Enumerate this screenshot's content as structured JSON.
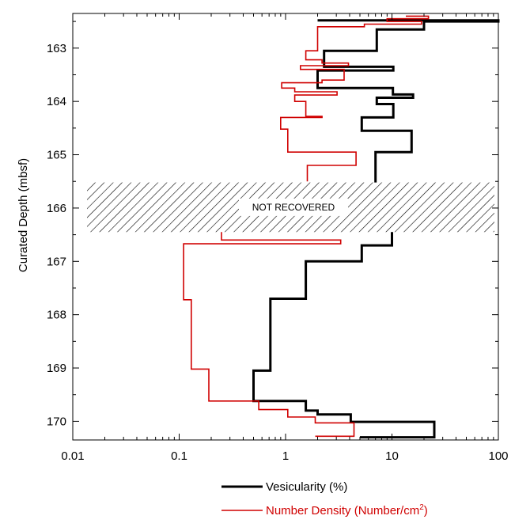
{
  "chart_data": {
    "type": "line",
    "title": "",
    "xlabel": "",
    "ylabel": "Curated Depth (mbsf)",
    "xscale": "log",
    "xlim": [
      0.01,
      100
    ],
    "ylim": [
      170.35,
      162.35
    ],
    "y_inverted": true,
    "x_ticks": [
      "0.01",
      "0.1",
      "1",
      "10",
      "100"
    ],
    "y_ticks": [
      "163",
      "164",
      "165",
      "166",
      "167",
      "168",
      "169",
      "170"
    ],
    "grid": false,
    "legend_position": "bottom",
    "annotation": {
      "text": "NOT RECOVERED",
      "depth_top": 165.52,
      "depth_bottom": 166.45
    },
    "series": [
      {
        "name": "Vesicularity (%)",
        "color": "#000000",
        "points": [
          [
            2.0,
            162.48
          ],
          [
            100,
            162.48
          ],
          [
            100,
            162.5
          ],
          [
            20.0,
            162.5
          ],
          [
            20.0,
            162.65
          ],
          [
            7.2,
            162.65
          ],
          [
            7.2,
            163.05
          ],
          [
            2.3,
            163.05
          ],
          [
            2.3,
            163.35
          ],
          [
            10.3,
            163.35
          ],
          [
            10.3,
            163.42
          ],
          [
            2.0,
            163.42
          ],
          [
            2.0,
            163.75
          ],
          [
            10.2,
            163.75
          ],
          [
            10.2,
            163.87
          ],
          [
            15.8,
            163.87
          ],
          [
            15.8,
            163.93
          ],
          [
            7.2,
            163.93
          ],
          [
            7.2,
            164.05
          ],
          [
            10.3,
            164.05
          ],
          [
            10.3,
            164.3
          ],
          [
            5.2,
            164.3
          ],
          [
            5.2,
            164.55
          ],
          [
            15.3,
            164.55
          ],
          [
            15.3,
            164.95
          ],
          [
            7.0,
            164.95
          ],
          [
            7.0,
            165.52
          ]
        ]
      },
      {
        "name": "Vesicularity (%) below gap",
        "color": "#000000",
        "points": [
          [
            10.0,
            166.45
          ],
          [
            10.0,
            166.7
          ],
          [
            5.2,
            166.7
          ],
          [
            5.2,
            167.0
          ],
          [
            1.55,
            167.0
          ],
          [
            1.55,
            167.7
          ],
          [
            0.72,
            167.7
          ],
          [
            0.72,
            169.05
          ],
          [
            0.5,
            169.05
          ],
          [
            0.5,
            169.62
          ],
          [
            1.55,
            169.62
          ],
          [
            1.55,
            169.8
          ],
          [
            2.0,
            169.8
          ],
          [
            2.0,
            169.87
          ],
          [
            4.1,
            169.87
          ],
          [
            4.1,
            170.01
          ],
          [
            25.0,
            170.01
          ],
          [
            25.0,
            170.3
          ],
          [
            5.0,
            170.3
          ]
        ]
      },
      {
        "name": "Number Density (Number/cm²)",
        "color": "#d00000",
        "points": [
          [
            13.5,
            162.4
          ],
          [
            22.0,
            162.4
          ],
          [
            22.0,
            162.45
          ],
          [
            9.0,
            162.45
          ],
          [
            9.0,
            162.5
          ],
          [
            19.0,
            162.5
          ],
          [
            19.0,
            162.55
          ],
          [
            5.5,
            162.55
          ],
          [
            5.5,
            162.6
          ],
          [
            2.0,
            162.6
          ],
          [
            2.0,
            163.05
          ],
          [
            1.55,
            163.05
          ],
          [
            1.55,
            163.22
          ],
          [
            2.2,
            163.22
          ],
          [
            2.2,
            163.28
          ],
          [
            3.9,
            163.28
          ],
          [
            3.9,
            163.33
          ],
          [
            1.38,
            163.33
          ],
          [
            1.38,
            163.4
          ],
          [
            3.55,
            163.4
          ],
          [
            3.55,
            163.6
          ],
          [
            2.2,
            163.6
          ],
          [
            2.2,
            163.65
          ],
          [
            0.92,
            163.65
          ],
          [
            0.92,
            163.75
          ],
          [
            1.22,
            163.75
          ],
          [
            1.22,
            163.82
          ],
          [
            3.05,
            163.82
          ],
          [
            3.05,
            163.88
          ],
          [
            1.22,
            163.88
          ],
          [
            1.22,
            164.0
          ],
          [
            1.55,
            164.0
          ],
          [
            1.55,
            164.28
          ],
          [
            2.2,
            164.28
          ],
          [
            2.2,
            164.3
          ],
          [
            0.9,
            164.3
          ],
          [
            0.9,
            164.52
          ],
          [
            1.05,
            164.52
          ],
          [
            1.05,
            164.95
          ],
          [
            4.6,
            164.95
          ],
          [
            4.6,
            165.2
          ],
          [
            1.6,
            165.2
          ],
          [
            1.6,
            165.5
          ]
        ]
      },
      {
        "name": "Number Density (Number/cm²) below gap",
        "color": "#d00000",
        "points": [
          [
            0.25,
            166.45
          ],
          [
            0.25,
            166.6
          ],
          [
            3.3,
            166.6
          ],
          [
            3.3,
            166.67
          ],
          [
            0.11,
            166.67
          ],
          [
            0.11,
            167.72
          ],
          [
            0.13,
            167.72
          ],
          [
            0.13,
            169.02
          ],
          [
            0.19,
            169.02
          ],
          [
            0.19,
            169.62
          ],
          [
            0.56,
            169.62
          ],
          [
            0.56,
            169.78
          ],
          [
            1.05,
            169.78
          ],
          [
            1.05,
            169.92
          ],
          [
            1.9,
            169.92
          ],
          [
            1.9,
            170.03
          ],
          [
            4.4,
            170.03
          ],
          [
            4.4,
            170.28
          ],
          [
            1.9,
            170.28
          ]
        ]
      }
    ],
    "legend": [
      {
        "label": "Vesicularity (%)",
        "color": "#000000"
      },
      {
        "label": "Number Density (Number/cm",
        "sup": "2",
        "close": ")",
        "color": "#d00000"
      }
    ]
  }
}
